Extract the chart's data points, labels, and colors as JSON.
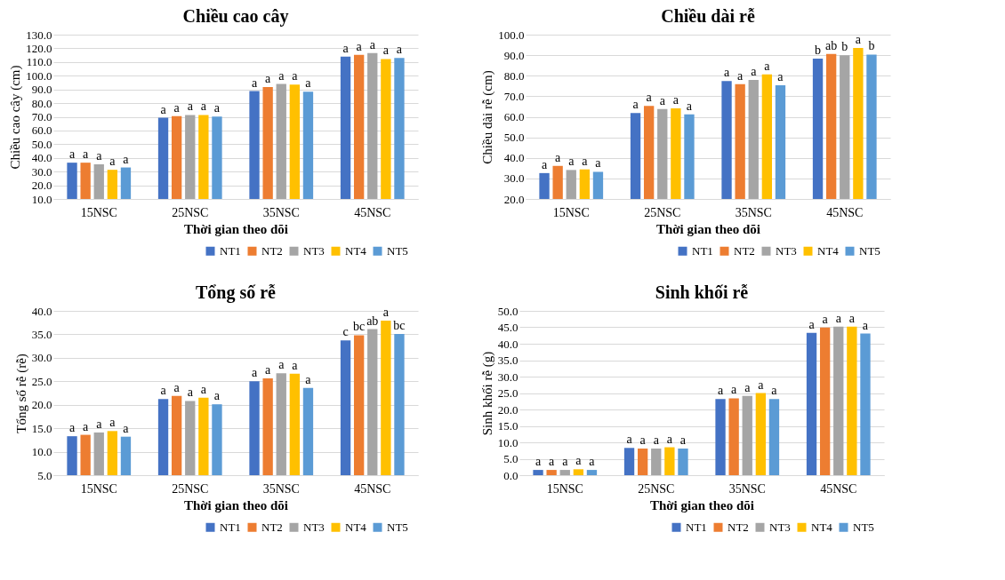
{
  "chart_data": [
    {
      "type": "bar",
      "title": "Chiều cao cây",
      "xlabel": "Thời gian theo dõi",
      "ylabel": "Chiều cao cây (cm)",
      "categories": [
        "15NSC",
        "25NSC",
        "35NSC",
        "45NSC"
      ],
      "ylim": [
        10,
        130
      ],
      "yticks": [
        {
          "value": 10,
          "label": "10.0"
        },
        {
          "value": 20,
          "label": "20.0"
        },
        {
          "value": 30,
          "label": "30.0"
        },
        {
          "value": 40,
          "label": "40.0"
        },
        {
          "value": 50,
          "label": "50.0"
        },
        {
          "value": 60,
          "label": "60.0"
        },
        {
          "value": 70,
          "label": "70.0"
        },
        {
          "value": 80,
          "label": "80.0"
        },
        {
          "value": 90,
          "label": "90.0"
        },
        {
          "value": 100,
          "label": "100.0"
        },
        {
          "value": 110,
          "label": "110.0"
        },
        {
          "value": 120,
          "label": "120.0"
        },
        {
          "value": 130,
          "label": "130.0"
        }
      ],
      "grid": "y",
      "legend": "bottom right",
      "series": [
        {
          "name": "NT1",
          "color": "#4472c4",
          "values": [
            36.5,
            69.3,
            88.8,
            114.0
          ],
          "value_labels": [
            "a",
            "a",
            "a",
            "a"
          ]
        },
        {
          "name": "NT2",
          "color": "#ed7d31",
          "values": [
            36.5,
            70.5,
            91.8,
            115.2
          ],
          "value_labels": [
            "a",
            "a",
            "a",
            "a"
          ]
        },
        {
          "name": "NT3",
          "color": "#a5a5a5",
          "values": [
            35.3,
            71.3,
            94.0,
            116.5
          ],
          "value_labels": [
            "a",
            "a",
            "a",
            "a"
          ]
        },
        {
          "name": "NT4",
          "color": "#ffc000",
          "values": [
            31.3,
            71.3,
            93.5,
            112.2
          ],
          "value_labels": [
            "a",
            "a",
            "a",
            "a"
          ]
        },
        {
          "name": "NT5",
          "color": "#5b9bd5",
          "values": [
            33.0,
            70.2,
            88.3,
            113.0
          ],
          "value_labels": [
            "a",
            "a",
            "a",
            "a"
          ]
        }
      ]
    },
    {
      "type": "bar",
      "title": "Chiều dài rễ",
      "xlabel": "Thời gian theo dõi",
      "ylabel": "Chiều dài rễ (cm)",
      "categories": [
        "15NSC",
        "25NSC",
        "35NSC",
        "45NSC"
      ],
      "ylim": [
        20,
        100
      ],
      "yticks": [
        {
          "value": 20,
          "label": "20.0"
        },
        {
          "value": 30,
          "label": "30.0"
        },
        {
          "value": 40,
          "label": "40.0"
        },
        {
          "value": 50,
          "label": "50.0"
        },
        {
          "value": 60,
          "label": "60.0"
        },
        {
          "value": 70,
          "label": "70.0"
        },
        {
          "value": 80,
          "label": "80.0"
        },
        {
          "value": 90,
          "label": "90.0"
        },
        {
          "value": 100,
          "label": "100.0"
        }
      ],
      "grid": "y",
      "legend": "bottom right",
      "series": [
        {
          "name": "NT1",
          "color": "#4472c4",
          "values": [
            32.6,
            61.8,
            77.4,
            88.3
          ],
          "value_labels": [
            "a",
            "a",
            "a",
            "b"
          ]
        },
        {
          "name": "NT2",
          "color": "#ed7d31",
          "values": [
            36.1,
            65.3,
            75.9,
            90.6
          ],
          "value_labels": [
            "a",
            "a",
            "a",
            "ab"
          ]
        },
        {
          "name": "NT3",
          "color": "#a5a5a5",
          "values": [
            34.1,
            63.8,
            77.9,
            90.0
          ],
          "value_labels": [
            "a",
            "a",
            "a",
            "b"
          ]
        },
        {
          "name": "NT4",
          "color": "#ffc000",
          "values": [
            34.4,
            64.1,
            80.6,
            93.5
          ],
          "value_labels": [
            "a",
            "a",
            "a",
            "a"
          ]
        },
        {
          "name": "NT5",
          "color": "#5b9bd5",
          "values": [
            33.2,
            61.2,
            75.4,
            90.3
          ],
          "value_labels": [
            "a",
            "a",
            "a",
            "b"
          ]
        }
      ]
    },
    {
      "type": "bar",
      "title": "Tổng số rễ",
      "xlabel": "Thời gian theo dõi",
      "ylabel": "Tổng số rễ (rễ)",
      "categories": [
        "15NSC",
        "25NSC",
        "35NSC",
        "45NSC"
      ],
      "ylim": [
        5,
        40
      ],
      "yticks": [
        {
          "value": 5,
          "label": "5.0"
        },
        {
          "value": 10,
          "label": "10.0"
        },
        {
          "value": 15,
          "label": "15.0"
        },
        {
          "value": 20,
          "label": "20.0"
        },
        {
          "value": 25,
          "label": "25.0"
        },
        {
          "value": 30,
          "label": "30.0"
        },
        {
          "value": 35,
          "label": "35.0"
        },
        {
          "value": 40,
          "label": "40.0"
        }
      ],
      "grid": "y",
      "legend": "bottom right",
      "series": [
        {
          "name": "NT1",
          "color": "#4472c4",
          "values": [
            13.3,
            21.2,
            25.0,
            33.7
          ],
          "value_labels": [
            "a",
            "a",
            "a",
            "c"
          ]
        },
        {
          "name": "NT2",
          "color": "#ed7d31",
          "values": [
            13.6,
            21.9,
            25.6,
            34.8
          ],
          "value_labels": [
            "a",
            "a",
            "a",
            "bc"
          ]
        },
        {
          "name": "NT3",
          "color": "#a5a5a5",
          "values": [
            14.1,
            20.8,
            26.7,
            36.1
          ],
          "value_labels": [
            "a",
            "a",
            "a",
            "ab"
          ]
        },
        {
          "name": "NT4",
          "color": "#ffc000",
          "values": [
            14.4,
            21.5,
            26.6,
            37.9
          ],
          "value_labels": [
            "a",
            "a",
            "a",
            "a"
          ]
        },
        {
          "name": "NT5",
          "color": "#5b9bd5",
          "values": [
            13.2,
            20.1,
            23.6,
            35.1
          ],
          "value_labels": [
            "a",
            "a",
            "a",
            "bc"
          ]
        }
      ]
    },
    {
      "type": "bar",
      "title": "Sinh khối rễ",
      "xlabel": "Thời gian theo dõi",
      "ylabel": "Sinh khối rễ (g)",
      "categories": [
        "15NSC",
        "25NSC",
        "35NSC",
        "45NSC"
      ],
      "ylim": [
        0,
        50
      ],
      "yticks": [
        {
          "value": 0,
          "label": "0.0"
        },
        {
          "value": 5,
          "label": "5.0"
        },
        {
          "value": 10,
          "label": "10.0"
        },
        {
          "value": 15,
          "label": "15.0"
        },
        {
          "value": 20,
          "label": "20.0"
        },
        {
          "value": 25,
          "label": "25.0"
        },
        {
          "value": 30,
          "label": "30.0"
        },
        {
          "value": 35,
          "label": "35.0"
        },
        {
          "value": 40,
          "label": "40.0"
        },
        {
          "value": 45,
          "label": "45.0"
        },
        {
          "value": 50,
          "label": "50.0"
        }
      ],
      "grid": "y",
      "legend": "bottom right",
      "series": [
        {
          "name": "NT1",
          "color": "#4472c4",
          "values": [
            1.6,
            8.3,
            23.2,
            43.3
          ],
          "value_labels": [
            "a",
            "a",
            "a",
            "a"
          ]
        },
        {
          "name": "NT2",
          "color": "#ed7d31",
          "values": [
            1.6,
            8.1,
            23.4,
            44.9
          ],
          "value_labels": [
            "a",
            "a",
            "a",
            "a"
          ]
        },
        {
          "name": "NT3",
          "color": "#a5a5a5",
          "values": [
            1.6,
            8.1,
            24.1,
            45.2
          ],
          "value_labels": [
            "a",
            "a",
            "a",
            "a"
          ]
        },
        {
          "name": "NT4",
          "color": "#ffc000",
          "values": [
            1.8,
            8.5,
            25.0,
            45.2
          ],
          "value_labels": [
            "a",
            "a",
            "a",
            "a"
          ]
        },
        {
          "name": "NT5",
          "color": "#5b9bd5",
          "values": [
            1.6,
            8.1,
            23.2,
            43.1
          ],
          "value_labels": [
            "a",
            "a",
            "a",
            "a"
          ]
        }
      ]
    }
  ]
}
